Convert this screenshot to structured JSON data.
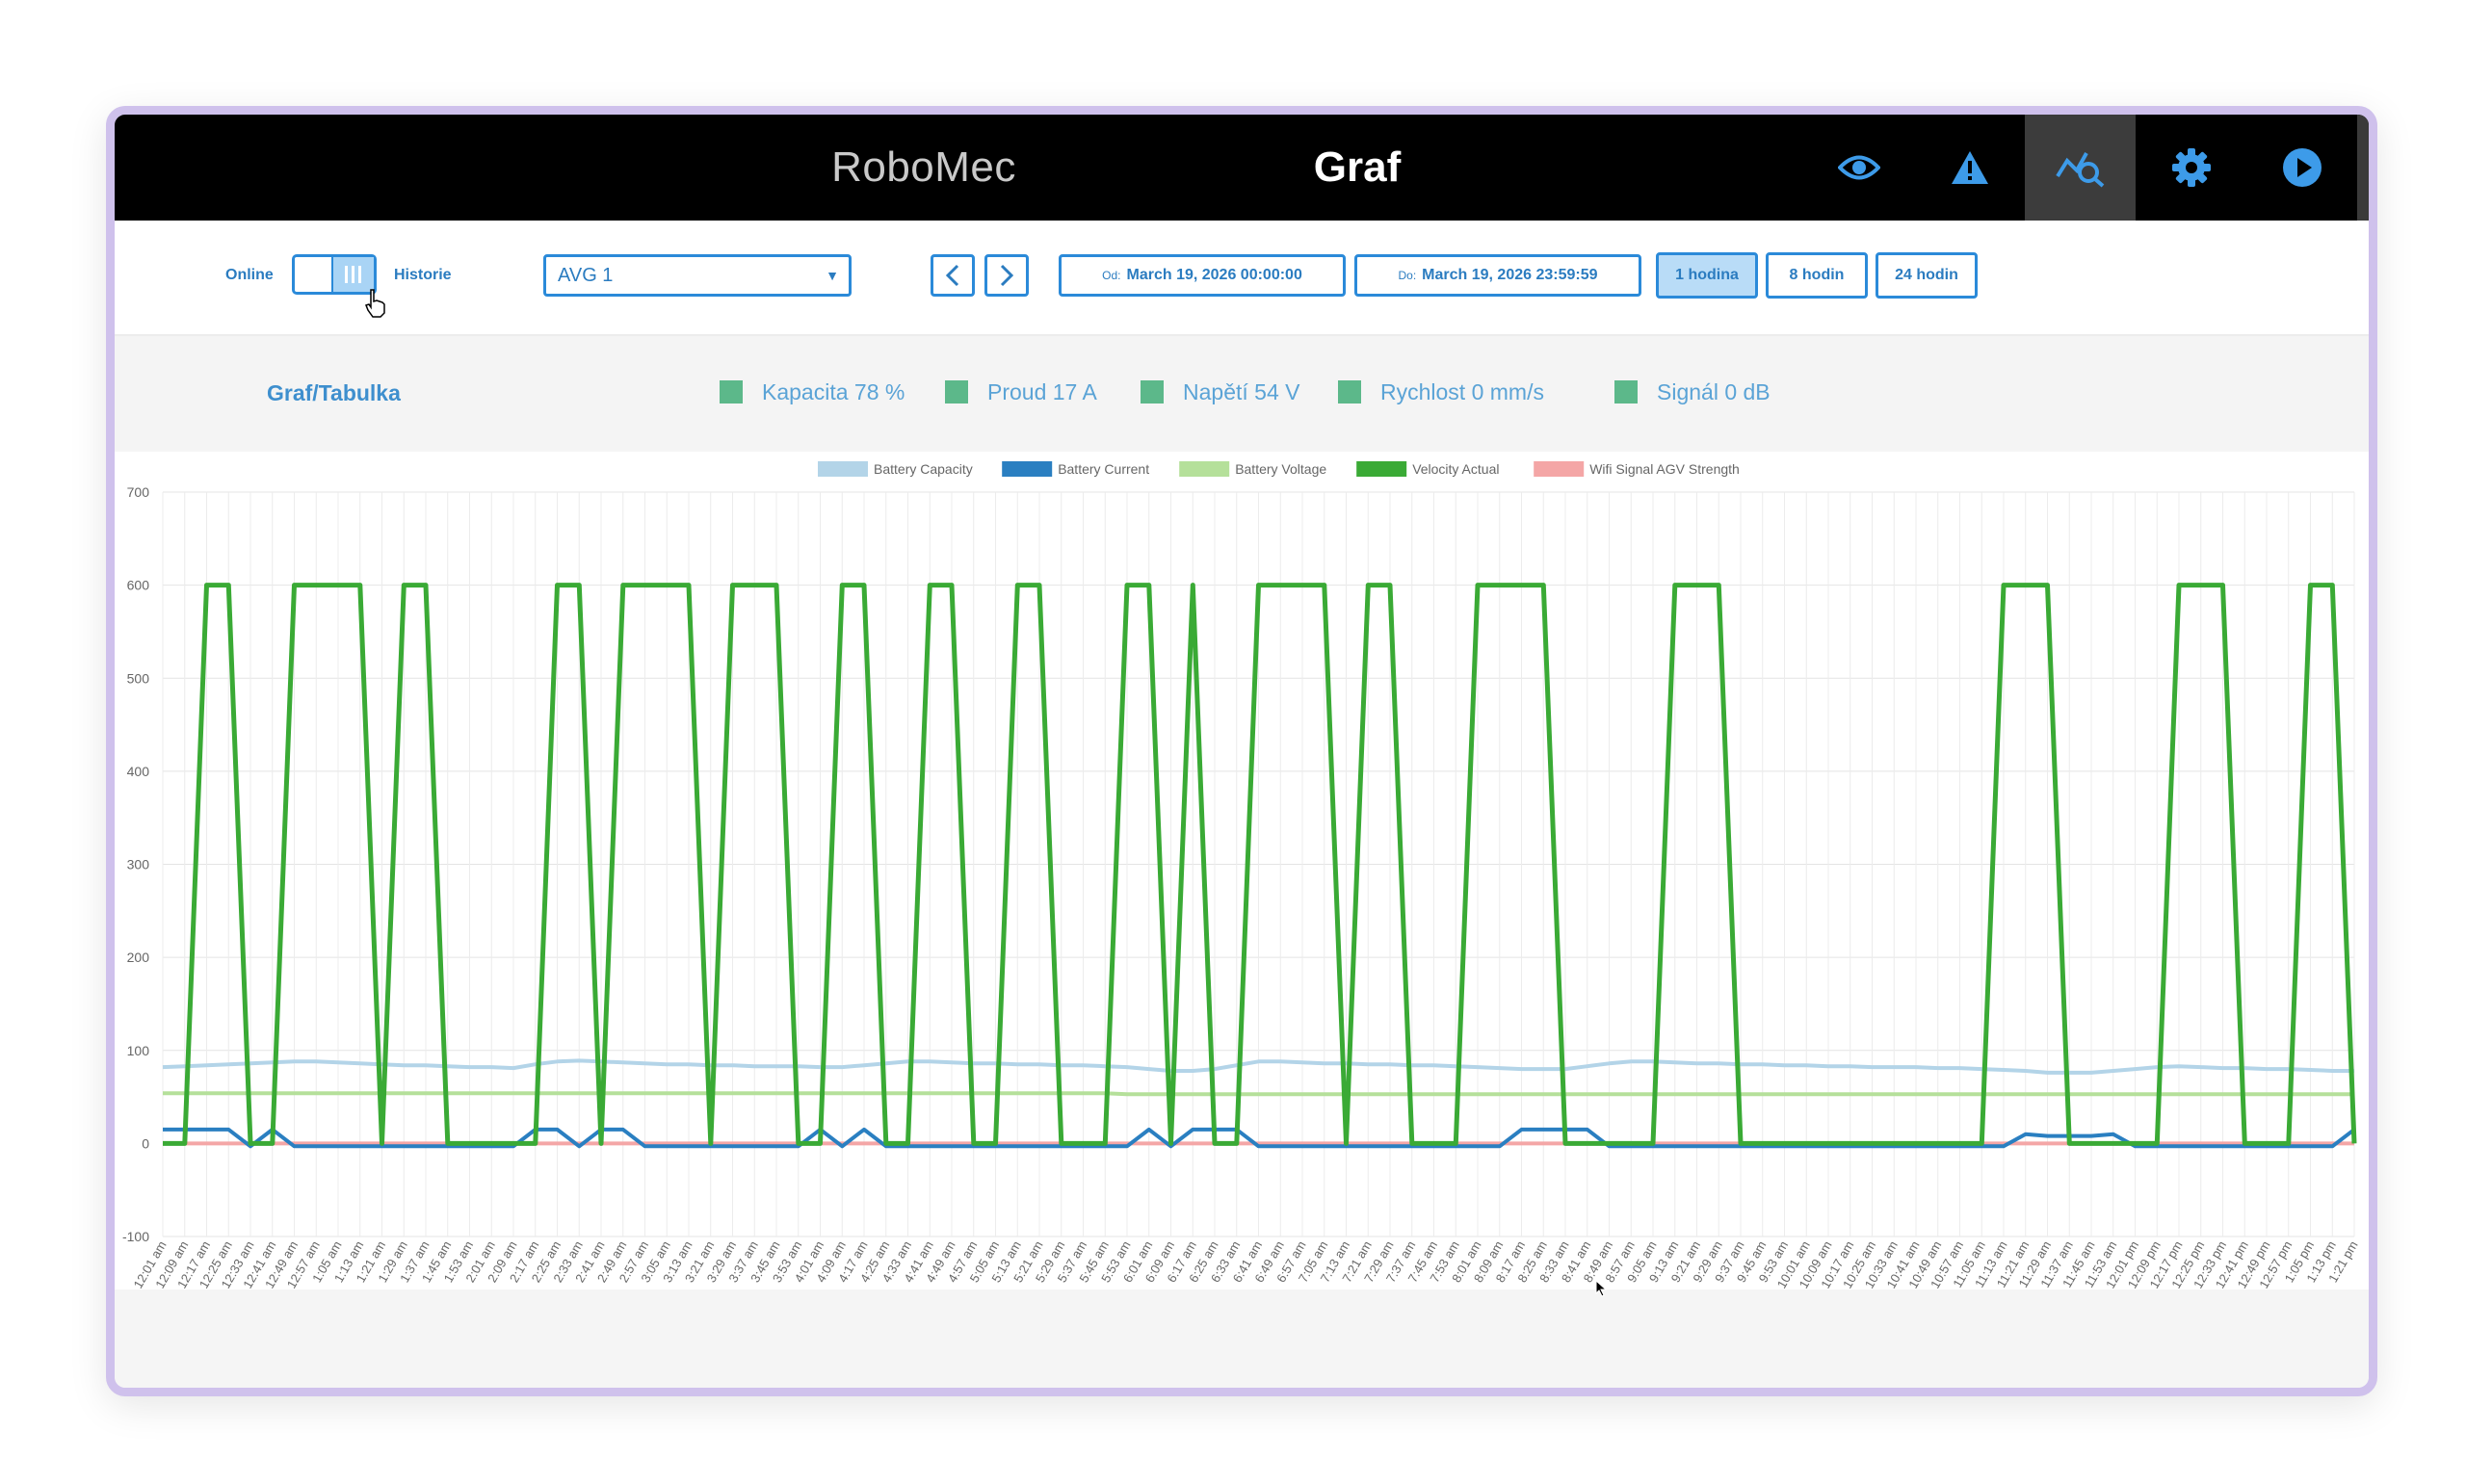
{
  "header": {
    "brand": "RoboMec",
    "title": "Graf",
    "icons": [
      "eye-icon",
      "warning-icon",
      "chart-search-icon",
      "gear-icon",
      "play-icon",
      "close-icon"
    ]
  },
  "controls": {
    "mode_left": "Online",
    "mode_right": "Historie",
    "select_value": "AVG 1",
    "from_prefix": "Od:",
    "from_value": "March 19, 2026 00:00:00",
    "to_prefix": "Do:",
    "to_value": "March 19, 2026 23:59:59",
    "ranges": [
      "1 hodina",
      "8 hodin",
      "24 hodin"
    ],
    "active_range": "1 hodina"
  },
  "stats": {
    "toggle_label": "Graf/Tabulka",
    "items": [
      "Kapacita 78 %",
      "Proud 17 A",
      "Napětí 54 V",
      "Rychlost 0 mm/s",
      "Signál 0 dB"
    ]
  },
  "colors": {
    "accent": "#2b8ad9",
    "capacity": "#b3d4e8",
    "current": "#2a7fc1",
    "voltage": "#b5e09a",
    "velocity": "#3aaa35",
    "wifi": "#f4a6a6"
  },
  "chart_data": {
    "type": "line",
    "title": "",
    "xlabel": "",
    "ylabel": "",
    "ylim": [
      -100,
      700
    ],
    "yticks": [
      -100,
      0,
      100,
      200,
      300,
      400,
      500,
      600,
      700
    ],
    "grid": true,
    "legend_position": "top-center",
    "x": [
      "12:01 am",
      "12:09 am",
      "12:17 am",
      "12:25 am",
      "12:33 am",
      "12:41 am",
      "12:49 am",
      "12:57 am",
      "1:05 am",
      "1:13 am",
      "1:21 am",
      "1:29 am",
      "1:37 am",
      "1:45 am",
      "1:53 am",
      "2:01 am",
      "2:09 am",
      "2:17 am",
      "2:25 am",
      "2:33 am",
      "2:41 am",
      "2:49 am",
      "2:57 am",
      "3:05 am",
      "3:13 am",
      "3:21 am",
      "3:29 am",
      "3:37 am",
      "3:45 am",
      "3:53 am",
      "4:01 am",
      "4:09 am",
      "4:17 am",
      "4:25 am",
      "4:33 am",
      "4:41 am",
      "4:49 am",
      "4:57 am",
      "5:05 am",
      "5:13 am",
      "5:21 am",
      "5:29 am",
      "5:37 am",
      "5:45 am",
      "5:53 am",
      "6:01 am",
      "6:09 am",
      "6:17 am",
      "6:25 am",
      "6:33 am",
      "6:41 am",
      "6:49 am",
      "6:57 am",
      "7:05 am",
      "7:13 am",
      "7:21 am",
      "7:29 am",
      "7:37 am",
      "7:45 am",
      "7:53 am",
      "8:01 am",
      "8:09 am",
      "8:17 am",
      "8:25 am",
      "8:33 am",
      "8:41 am",
      "8:49 am",
      "8:57 am",
      "9:05 am",
      "9:13 am",
      "9:21 am",
      "9:29 am",
      "9:37 am",
      "9:45 am",
      "9:53 am",
      "10:01 am",
      "10:09 am",
      "10:17 am",
      "10:25 am",
      "10:33 am",
      "10:41 am",
      "10:49 am",
      "10:57 am",
      "11:05 am",
      "11:13 am",
      "11:21 am",
      "11:29 am",
      "11:37 am",
      "11:45 am",
      "11:53 am",
      "12:01 pm",
      "12:09 pm",
      "12:17 pm",
      "12:25 pm",
      "12:33 pm",
      "12:41 pm",
      "12:49 pm",
      "12:57 pm",
      "1:05 pm",
      "1:13 pm",
      "1:21 pm"
    ],
    "series": [
      {
        "name": "Battery Capacity",
        "values": [
          82,
          83,
          84,
          85,
          86,
          87,
          88,
          88,
          87,
          86,
          85,
          84,
          84,
          83,
          82,
          82,
          81,
          85,
          88,
          89,
          88,
          87,
          86,
          85,
          85,
          84,
          84,
          83,
          83,
          83,
          82,
          82,
          84,
          86,
          88,
          88,
          87,
          86,
          86,
          85,
          85,
          84,
          84,
          83,
          82,
          80,
          78,
          78,
          80,
          84,
          88,
          88,
          87,
          86,
          86,
          85,
          85,
          84,
          84,
          83,
          82,
          81,
          80,
          80,
          80,
          83,
          86,
          88,
          88,
          87,
          86,
          86,
          85,
          85,
          84,
          84,
          83,
          83,
          82,
          82,
          82,
          81,
          81,
          80,
          79,
          78,
          76,
          76,
          76,
          78,
          80,
          82,
          83,
          82,
          81,
          81,
          80,
          80,
          79,
          78,
          78
        ]
      },
      {
        "name": "Battery Current",
        "values": [
          15,
          15,
          15,
          15,
          -3,
          15,
          -3,
          -3,
          -3,
          -3,
          -3,
          -3,
          -3,
          -3,
          -3,
          -3,
          -3,
          15,
          15,
          -3,
          15,
          15,
          -3,
          -3,
          -3,
          -3,
          -3,
          -3,
          -3,
          -3,
          15,
          -3,
          15,
          -3,
          -3,
          -3,
          -3,
          -3,
          -3,
          -3,
          -3,
          -3,
          -3,
          -3,
          -3,
          15,
          -3,
          15,
          15,
          15,
          -3,
          -3,
          -3,
          -3,
          -3,
          -3,
          -3,
          -3,
          -3,
          -3,
          -3,
          -3,
          15,
          15,
          15,
          15,
          -3,
          -3,
          -3,
          -3,
          -3,
          -3,
          -3,
          -3,
          -3,
          -3,
          -3,
          -3,
          -3,
          -3,
          -3,
          -3,
          -3,
          -3,
          -3,
          10,
          8,
          8,
          8,
          10,
          -3,
          -3,
          -3,
          -3,
          -3,
          -3,
          -3,
          -3,
          -3,
          -3,
          15
        ]
      },
      {
        "name": "Battery Voltage",
        "values": [
          54,
          54,
          54,
          54,
          54,
          54,
          54,
          54,
          54,
          54,
          54,
          54,
          54,
          54,
          54,
          54,
          54,
          54,
          54,
          54,
          54,
          54,
          54,
          54,
          54,
          54,
          54,
          54,
          54,
          54,
          54,
          54,
          54,
          54,
          54,
          54,
          54,
          54,
          54,
          54,
          54,
          54,
          54,
          54,
          53,
          53,
          53,
          53,
          53,
          53,
          53,
          53,
          53,
          53,
          53,
          53,
          53,
          53,
          53,
          53,
          53,
          53,
          53,
          53,
          53,
          53,
          53,
          53,
          53,
          53,
          53,
          53,
          53,
          53,
          53,
          53,
          53,
          53,
          53,
          53,
          53,
          53,
          53,
          53,
          53,
          53,
          53,
          53,
          53,
          53,
          53,
          53,
          53,
          53,
          53,
          53,
          53,
          53,
          53,
          53,
          53
        ]
      },
      {
        "name": "Velocity Actual",
        "values": [
          0,
          0,
          600,
          600,
          0,
          0,
          600,
          600,
          600,
          600,
          0,
          600,
          600,
          0,
          0,
          0,
          0,
          0,
          600,
          600,
          0,
          600,
          600,
          600,
          600,
          0,
          600,
          600,
          600,
          0,
          0,
          600,
          600,
          0,
          0,
          600,
          600,
          0,
          0,
          600,
          600,
          0,
          0,
          0,
          600,
          600,
          0,
          600,
          0,
          0,
          600,
          600,
          600,
          600,
          0,
          600,
          600,
          0,
          0,
          0,
          600,
          600,
          600,
          600,
          0,
          0,
          0,
          0,
          0,
          600,
          600,
          600,
          0,
          0,
          0,
          0,
          0,
          0,
          0,
          0,
          0,
          0,
          0,
          0,
          600,
          600,
          600,
          0,
          0,
          0,
          0,
          0,
          600,
          600,
          600,
          0,
          0,
          0,
          600,
          600,
          0
        ]
      },
      {
        "name": "Wifi Signal AGV Strength",
        "values": [
          0,
          0,
          0,
          0,
          0,
          0,
          0,
          0,
          0,
          0,
          0,
          0,
          0,
          0,
          0,
          0,
          0,
          0,
          0,
          0,
          0,
          0,
          0,
          0,
          0,
          0,
          0,
          0,
          0,
          0,
          0,
          0,
          0,
          0,
          0,
          0,
          0,
          0,
          0,
          0,
          0,
          0,
          0,
          0,
          0,
          0,
          0,
          0,
          0,
          0,
          0,
          0,
          0,
          0,
          0,
          0,
          0,
          0,
          0,
          0,
          0,
          0,
          0,
          0,
          0,
          0,
          0,
          0,
          0,
          0,
          0,
          0,
          0,
          0,
          0,
          0,
          0,
          0,
          0,
          0,
          0,
          0,
          0,
          0,
          0,
          0,
          0,
          0,
          0,
          0,
          0,
          0,
          0,
          0,
          0,
          0,
          0,
          0,
          0,
          0,
          0
        ]
      }
    ]
  }
}
